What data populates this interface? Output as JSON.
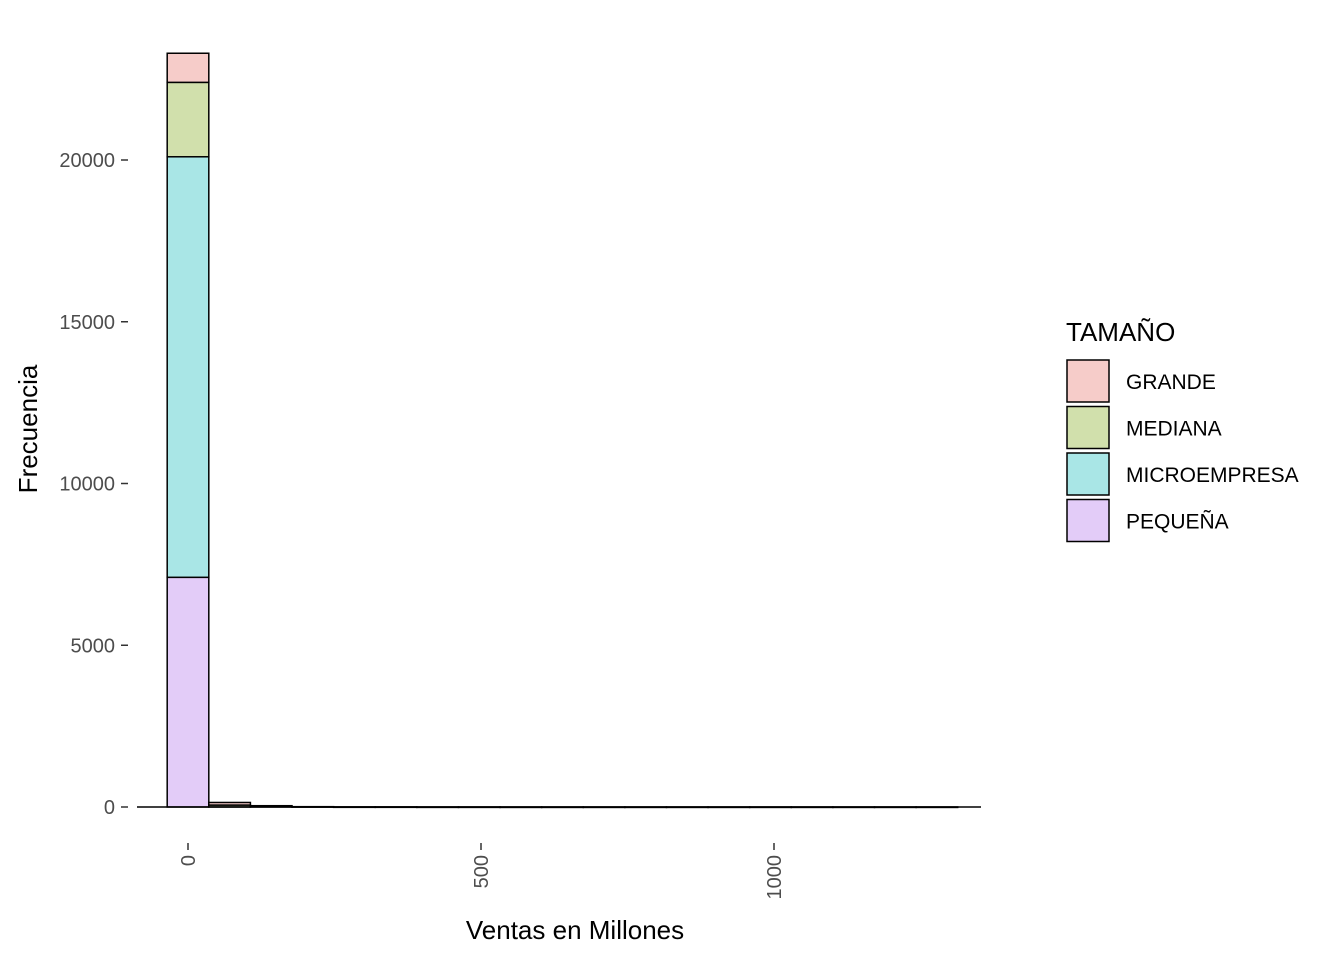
{
  "chart_data": {
    "type": "bar",
    "subtype": "stacked-histogram",
    "title": "",
    "xlabel": "Ventas en Millones",
    "ylabel": "Frecuencia",
    "xlim": [
      -40,
      1350
    ],
    "ylim": [
      0,
      23300
    ],
    "x_ticks": [
      0,
      500,
      1000
    ],
    "x_tick_labels": [
      "0",
      "500",
      "1000"
    ],
    "y_ticks": [
      0,
      5000,
      10000,
      15000,
      20000
    ],
    "y_tick_labels": [
      "0",
      "5000",
      "10000",
      "15000",
      "20000"
    ],
    "grid": false,
    "legend_position": "right",
    "legend_title": "TAMAÑO",
    "bin_edges": [
      -35.5,
      35.5,
      106.5,
      177.5,
      248.5,
      319.5,
      390.5,
      461.5,
      532.5,
      603.5,
      674.5,
      745.5,
      816.5,
      887.5,
      958.5,
      1029.5,
      1100.5,
      1171.5,
      1242.5,
      1313.5
    ],
    "series": [
      {
        "name": "PEQUEÑA",
        "color": "#e3ccf8",
        "values": [
          7100,
          0,
          0,
          0,
          0,
          0,
          0,
          0,
          0,
          0,
          0,
          0,
          0,
          0,
          0,
          0,
          0,
          0,
          0
        ]
      },
      {
        "name": "MICROEMPRESA",
        "color": "#a9e6e6",
        "values": [
          13000,
          0,
          0,
          0,
          0,
          0,
          0,
          0,
          0,
          0,
          0,
          0,
          0,
          0,
          0,
          0,
          0,
          0,
          0
        ]
      },
      {
        "name": "MEDIANA",
        "color": "#d1e0ac",
        "values": [
          2300,
          60,
          0,
          0,
          0,
          0,
          0,
          0,
          0,
          0,
          0,
          0,
          0,
          0,
          0,
          0,
          0,
          0,
          0
        ]
      },
      {
        "name": "GRANDE",
        "color": "#f6ccc9",
        "values": [
          900,
          80,
          40,
          10,
          5,
          5,
          3,
          3,
          2,
          2,
          2,
          2,
          2,
          2,
          2,
          2,
          2,
          2,
          2
        ]
      }
    ]
  }
}
